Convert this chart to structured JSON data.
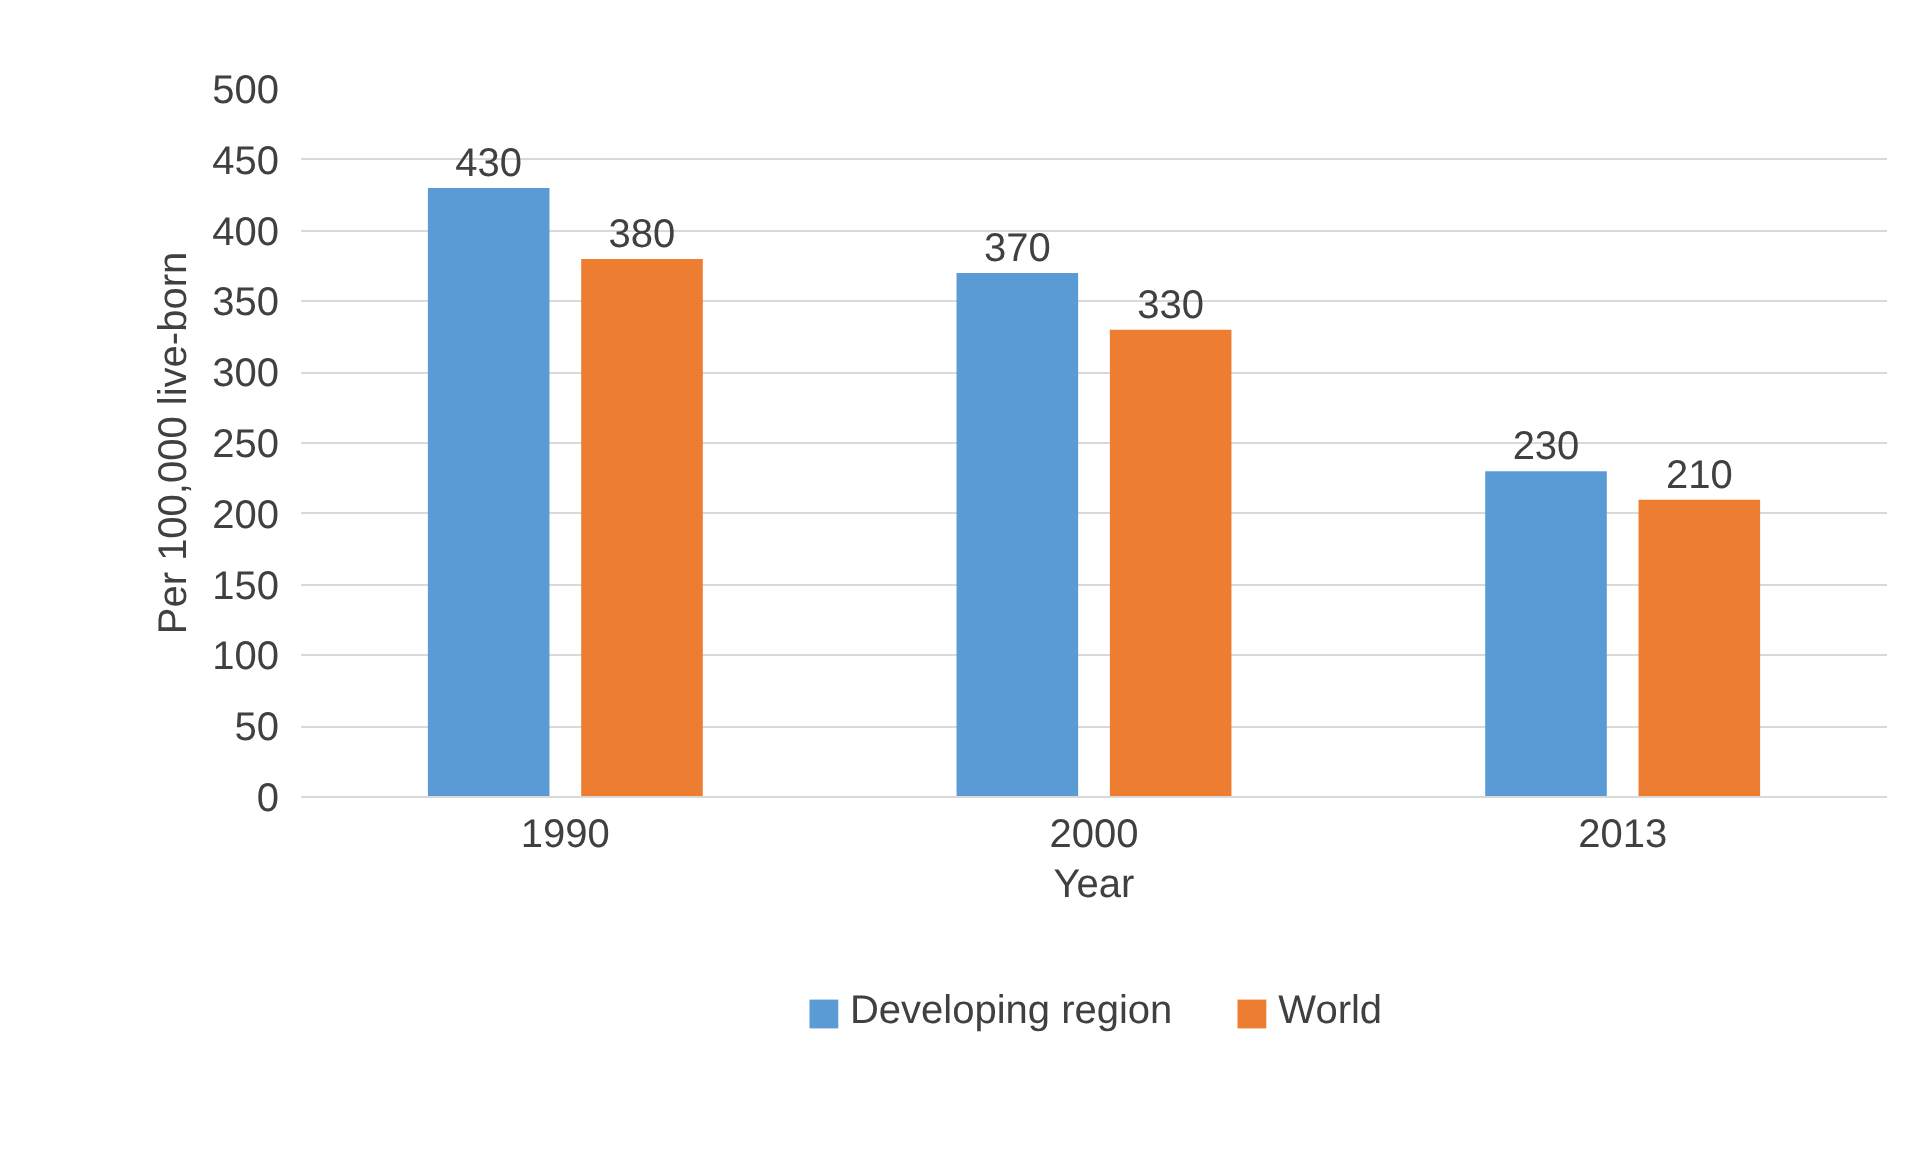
{
  "chart_data": {
    "type": "bar",
    "xlabel": "Year",
    "ylabel": "Per 100,000 live-born",
    "categories": [
      "1990",
      "2000",
      "2013"
    ],
    "series": [
      {
        "name": "Developing region",
        "color": "#5b9bd5",
        "values": [
          430,
          370,
          230
        ]
      },
      {
        "name": "World",
        "color": "#ed7d31",
        "values": [
          380,
          330,
          210
        ]
      }
    ],
    "ylim": [
      0,
      500
    ],
    "yticks": [
      0,
      50,
      100,
      150,
      200,
      250,
      300,
      350,
      400,
      450,
      500
    ],
    "grid": "y",
    "legend": "bottom",
    "data_labels": true
  }
}
